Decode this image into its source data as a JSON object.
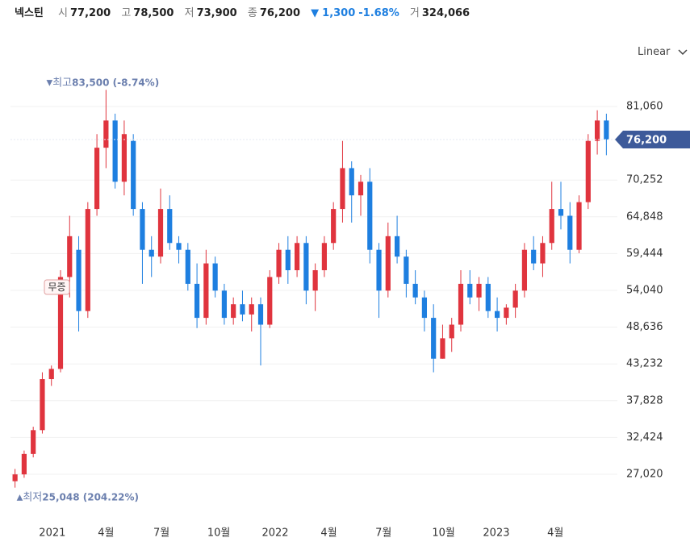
{
  "header": {
    "name": "넥스틴",
    "open_label": "시",
    "open": "77,200",
    "high_label": "고",
    "high": "78,500",
    "low_label": "저",
    "low": "73,900",
    "close_label": "종",
    "close": "76,200",
    "change": "1,300",
    "change_pct": "-1.68%",
    "volume_label": "거",
    "volume": "324,066"
  },
  "scale_mode": "Linear",
  "chart_data": {
    "type": "candlestick",
    "up_color": "#e0343e",
    "down_color": "#1e7fe0",
    "grid": true,
    "ylim": [
      20857,
      84853
    ],
    "yticks": [
      {
        "value": 27020,
        "label": "27,020"
      },
      {
        "value": 32424,
        "label": "32,424"
      },
      {
        "value": 37828,
        "label": "37,828"
      },
      {
        "value": 43232,
        "label": "43,232"
      },
      {
        "value": 48636,
        "label": "48,636"
      },
      {
        "value": 54040,
        "label": "54,040"
      },
      {
        "value": 59444,
        "label": "59,444"
      },
      {
        "value": 64848,
        "label": "64,848"
      },
      {
        "value": 70252,
        "label": "70,252"
      },
      {
        "value": 81060,
        "label": "81,060"
      }
    ],
    "xlim": [
      -0.5,
      65.5
    ],
    "xticks": [
      {
        "value": 4.1,
        "label": "2021"
      },
      {
        "value": 10.0,
        "label": "4월"
      },
      {
        "value": 16.1,
        "label": "7월"
      },
      {
        "value": 22.4,
        "label": "10월"
      },
      {
        "value": 28.6,
        "label": "2022"
      },
      {
        "value": 34.5,
        "label": "4월"
      },
      {
        "value": 40.5,
        "label": "7월"
      },
      {
        "value": 47.1,
        "label": "10월"
      },
      {
        "value": 52.9,
        "label": "2023"
      },
      {
        "value": 59.4,
        "label": "4월"
      }
    ],
    "last_price": {
      "value": 76200,
      "label": "76,200"
    },
    "max_annotation": {
      "label": "최고",
      "value": 83500,
      "text": "83,500 (-8.74%)"
    },
    "min_annotation": {
      "label": "최저",
      "value": 25048,
      "text": "25,048 (204.22%)"
    },
    "event_tag": "무증",
    "candles": [
      [
        26000,
        27800,
        25048,
        27000
      ],
      [
        27000,
        30500,
        26500,
        30000
      ],
      [
        30000,
        34000,
        29500,
        33500
      ],
      [
        33500,
        42000,
        33000,
        41000
      ],
      [
        41000,
        43000,
        40000,
        42500
      ],
      [
        42500,
        57000,
        42000,
        56000
      ],
      [
        56000,
        65000,
        53000,
        62000
      ],
      [
        60000,
        62000,
        48000,
        51000
      ],
      [
        51000,
        67000,
        50000,
        66000
      ],
      [
        66000,
        77000,
        65000,
        75000
      ],
      [
        75000,
        83500,
        72000,
        79000
      ],
      [
        79000,
        80000,
        69000,
        70000
      ],
      [
        70000,
        79000,
        68000,
        77000
      ],
      [
        76000,
        77000,
        65000,
        66000
      ],
      [
        66000,
        67000,
        55000,
        60000
      ],
      [
        60000,
        62000,
        56000,
        59000
      ],
      [
        59000,
        69000,
        58000,
        66000
      ],
      [
        66000,
        68000,
        60000,
        61000
      ],
      [
        61000,
        62000,
        58000,
        60000
      ],
      [
        60000,
        61000,
        54000,
        55000
      ],
      [
        55000,
        58000,
        48500,
        50000
      ],
      [
        50000,
        60000,
        49000,
        58000
      ],
      [
        58000,
        59000,
        53000,
        54000
      ],
      [
        54000,
        55000,
        49000,
        50000
      ],
      [
        50000,
        53000,
        49000,
        52000
      ],
      [
        52000,
        54000,
        49500,
        50500
      ],
      [
        50500,
        53000,
        48000,
        52000
      ],
      [
        52000,
        53000,
        43000,
        49000
      ],
      [
        49000,
        57000,
        48500,
        56000
      ],
      [
        56000,
        61000,
        55000,
        60000
      ],
      [
        60000,
        62000,
        55000,
        57000
      ],
      [
        57000,
        62000,
        56000,
        61000
      ],
      [
        61000,
        62000,
        52000,
        54000
      ],
      [
        54000,
        58000,
        51000,
        57000
      ],
      [
        57000,
        62000,
        56000,
        61000
      ],
      [
        61000,
        67000,
        60000,
        66000
      ],
      [
        66000,
        76000,
        64000,
        72000
      ],
      [
        72000,
        73000,
        64000,
        68000
      ],
      [
        68000,
        71000,
        65000,
        70000
      ],
      [
        70000,
        72000,
        58000,
        60000
      ],
      [
        60000,
        61000,
        50000,
        54000
      ],
      [
        54000,
        64000,
        53000,
        62000
      ],
      [
        62000,
        65000,
        58000,
        59000
      ],
      [
        59000,
        60000,
        53000,
        55000
      ],
      [
        55000,
        57000,
        52000,
        53000
      ],
      [
        53000,
        54000,
        48000,
        50000
      ],
      [
        50000,
        52000,
        42000,
        44000
      ],
      [
        44000,
        49000,
        44000,
        47000
      ],
      [
        47000,
        50000,
        45000,
        49000
      ],
      [
        49000,
        57000,
        48000,
        55000
      ],
      [
        55000,
        57000,
        52000,
        53000
      ],
      [
        53000,
        56000,
        51000,
        55000
      ],
      [
        55000,
        56000,
        50000,
        51000
      ],
      [
        51000,
        53000,
        48000,
        50000
      ],
      [
        50000,
        52000,
        49000,
        51500
      ],
      [
        51500,
        55000,
        50000,
        54000
      ],
      [
        54000,
        61000,
        53000,
        60000
      ],
      [
        60000,
        62000,
        57000,
        58000
      ],
      [
        58000,
        62000,
        56000,
        61000
      ],
      [
        61000,
        70000,
        60000,
        66000
      ],
      [
        66000,
        70000,
        63000,
        65000
      ],
      [
        65000,
        67000,
        58000,
        60000
      ],
      [
        60000,
        68000,
        59500,
        67000
      ],
      [
        67000,
        77000,
        66000,
        76000
      ],
      [
        76000,
        80500,
        74000,
        79000
      ],
      [
        79000,
        80000,
        73900,
        76200
      ]
    ]
  }
}
